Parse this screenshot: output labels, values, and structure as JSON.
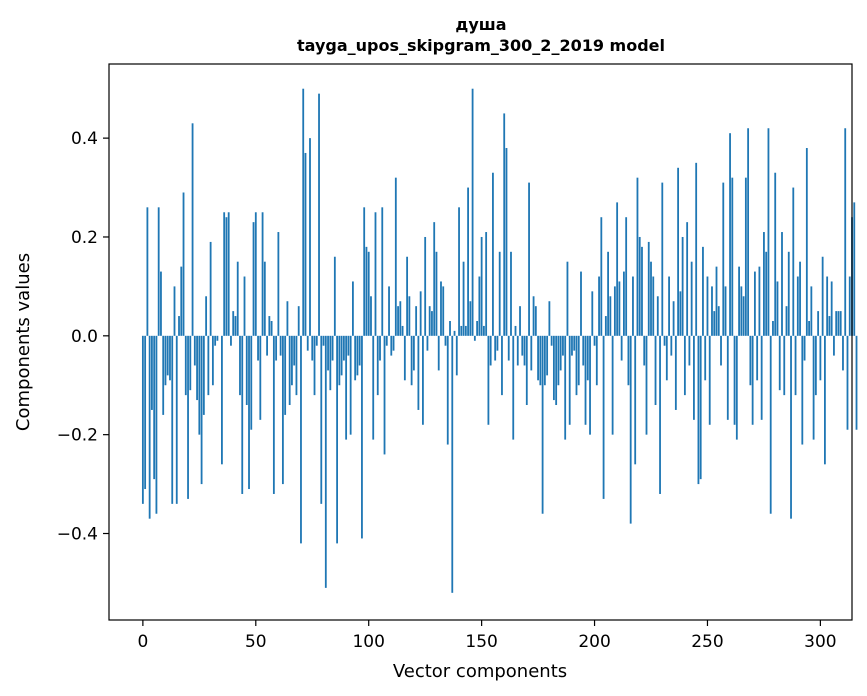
{
  "chart_data": {
    "type": "bar",
    "title": "душа",
    "subtitle": "tayga_upos_skipgram_300_2_2019 model",
    "xlabel": "Vector components",
    "ylabel": "Components values",
    "xlim": [
      -15,
      314
    ],
    "ylim": [
      -0.575,
      0.55
    ],
    "xticks": [
      0,
      50,
      100,
      150,
      200,
      250,
      300
    ],
    "yticks": [
      -0.4,
      -0.2,
      0.0,
      0.2,
      0.4
    ],
    "xtick_labels": [
      "0",
      "50",
      "100",
      "150",
      "200",
      "250",
      "300"
    ],
    "ytick_labels": [
      "−0.4",
      "−0.2",
      "0.0",
      "0.2",
      "0.4"
    ],
    "bar_color": "#1f77b4",
    "values": [
      -0.34,
      -0.31,
      0.26,
      -0.37,
      -0.15,
      -0.29,
      -0.36,
      0.26,
      0.13,
      -0.16,
      -0.1,
      -0.08,
      -0.09,
      -0.34,
      0.1,
      -0.34,
      0.04,
      0.14,
      0.29,
      -0.12,
      -0.33,
      -0.11,
      0.43,
      -0.06,
      -0.13,
      -0.2,
      -0.3,
      -0.16,
      0.08,
      -0.12,
      0.19,
      -0.1,
      -0.02,
      -0.01,
      0.0,
      -0.26,
      0.25,
      0.24,
      0.25,
      -0.02,
      0.05,
      0.04,
      0.15,
      -0.12,
      -0.32,
      0.12,
      -0.14,
      -0.31,
      -0.19,
      0.23,
      0.25,
      -0.05,
      -0.17,
      0.25,
      0.15,
      -0.04,
      0.04,
      0.03,
      -0.32,
      -0.05,
      0.21,
      -0.04,
      -0.3,
      -0.16,
      0.07,
      -0.14,
      -0.1,
      -0.06,
      -0.12,
      0.06,
      -0.42,
      0.5,
      0.37,
      -0.03,
      0.4,
      -0.05,
      -0.12,
      -0.02,
      0.49,
      -0.34,
      -0.02,
      -0.51,
      -0.07,
      -0.11,
      -0.05,
      0.16,
      -0.42,
      -0.1,
      -0.08,
      -0.05,
      -0.21,
      -0.04,
      -0.2,
      0.11,
      -0.09,
      -0.08,
      -0.06,
      -0.41,
      0.26,
      0.18,
      0.17,
      0.08,
      -0.21,
      0.25,
      -0.12,
      -0.05,
      0.26,
      -0.24,
      -0.02,
      0.1,
      -0.04,
      -0.03,
      0.32,
      0.06,
      0.07,
      0.02,
      -0.09,
      0.16,
      0.08,
      -0.1,
      -0.07,
      0.06,
      -0.15,
      0.09,
      -0.18,
      0.2,
      -0.03,
      0.06,
      0.05,
      0.23,
      0.17,
      -0.07,
      0.11,
      0.1,
      -0.02,
      -0.22,
      0.03,
      -0.52,
      0.01,
      -0.08,
      0.26,
      0.02,
      0.15,
      0.02,
      0.3,
      0.07,
      0.5,
      -0.01,
      0.03,
      0.12,
      0.2,
      0.02,
      0.21,
      -0.18,
      -0.06,
      0.33,
      -0.05,
      -0.03,
      0.17,
      -0.12,
      0.45,
      0.38,
      -0.05,
      0.17,
      -0.21,
      0.02,
      -0.06,
      0.06,
      -0.04,
      -0.06,
      -0.14,
      0.31,
      -0.07,
      0.08,
      0.06,
      -0.09,
      -0.1,
      -0.36,
      -0.1,
      -0.08,
      0.07,
      -0.02,
      -0.13,
      -0.14,
      -0.1,
      -0.07,
      -0.04,
      -0.21,
      0.15,
      -0.18,
      -0.04,
      -0.03,
      -0.12,
      -0.1,
      0.13,
      -0.06,
      -0.18,
      -0.09,
      -0.2,
      0.09,
      -0.02,
      -0.1,
      0.12,
      0.24,
      -0.33,
      0.04,
      0.17,
      0.08,
      -0.2,
      0.1,
      0.27,
      0.11,
      -0.05,
      0.13,
      0.24,
      -0.1,
      -0.38,
      0.12,
      -0.26,
      0.32,
      0.2,
      0.18,
      -0.06,
      -0.2,
      0.19,
      0.15,
      0.12,
      -0.14,
      0.08,
      -0.32,
      0.31,
      -0.02,
      -0.09,
      0.12,
      -0.04,
      0.07,
      -0.15,
      0.34,
      0.09,
      0.2,
      -0.12,
      0.23,
      -0.06,
      0.15,
      -0.17,
      0.35,
      -0.3,
      -0.29,
      0.18,
      -0.09,
      0.12,
      -0.18,
      0.1,
      0.05,
      0.14,
      0.06,
      -0.06,
      0.31,
      0.1,
      -0.17,
      0.41,
      0.32,
      -0.18,
      -0.21,
      0.14,
      0.1,
      0.08,
      0.32,
      0.42,
      -0.1,
      -0.18,
      0.13,
      -0.09,
      0.14,
      -0.17,
      0.21,
      0.17,
      0.42,
      -0.36,
      0.03,
      0.33,
      0.11,
      -0.11,
      0.21,
      -0.12,
      0.06,
      0.17,
      -0.37,
      0.3,
      -0.12,
      0.12,
      0.15,
      -0.22,
      -0.05,
      0.38,
      0.03,
      0.1,
      -0.21,
      -0.12,
      0.05,
      -0.09,
      0.16,
      -0.26,
      0.12,
      0.04,
      0.11,
      -0.04,
      0.05,
      0.05,
      0.05,
      -0.07,
      0.42,
      -0.19,
      0.12,
      0.24,
      0.27,
      -0.19
    ]
  }
}
